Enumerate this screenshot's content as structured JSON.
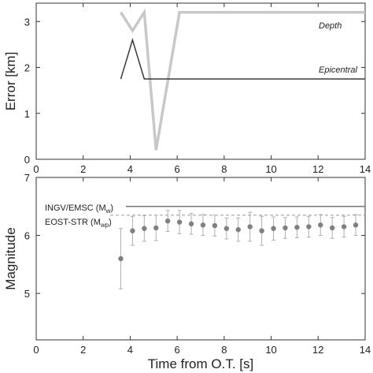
{
  "chart_data": [
    {
      "type": "line",
      "xlabel": "",
      "ylabel": "Error [km]",
      "xlim": [
        0,
        14
      ],
      "ylim": [
        0,
        3.4
      ],
      "xticks": [
        "0",
        "2",
        "4",
        "6",
        "8",
        "10",
        "12",
        "14"
      ],
      "yticks": [
        "0",
        "1",
        "2",
        "3"
      ],
      "grid": false,
      "series": [
        {
          "name": "Depth",
          "color": "#c8c8c8",
          "x": [
            3.6,
            4.1,
            4.6,
            5.1,
            6.1,
            14.0
          ],
          "y": [
            3.2,
            2.8,
            3.2,
            0.2,
            3.2,
            3.2
          ]
        },
        {
          "name": "Epicentral",
          "color": "#3a3a3a",
          "x": [
            3.6,
            4.1,
            4.6,
            14.0
          ],
          "y": [
            1.75,
            2.6,
            1.75,
            1.75
          ]
        }
      ]
    },
    {
      "type": "scatter",
      "xlabel": "Time from O.T. [s]",
      "ylabel": "Magnitude",
      "xlim": [
        0,
        14
      ],
      "ylim": [
        4.2,
        7.0
      ],
      "xticks": [
        "0",
        "2",
        "4",
        "6",
        "8",
        "10",
        "12",
        "14"
      ],
      "yticks": [
        "5",
        "6",
        "7"
      ],
      "grid": false,
      "reference_lines": [
        {
          "label": "INGV/EMSC",
          "sub": "w",
          "value": 6.5,
          "style": "solid",
          "color": "#777777"
        },
        {
          "label": "EOST-STR",
          "sub": "wp",
          "value": 6.35,
          "style": "dashed",
          "color": "#999999"
        }
      ],
      "series": [
        {
          "color": "#808080",
          "x": [
            3.6,
            4.1,
            4.6,
            5.1,
            5.6,
            6.1,
            6.6,
            7.1,
            7.6,
            8.1,
            8.6,
            9.1,
            9.6,
            10.1,
            10.6,
            11.1,
            11.6,
            12.1,
            12.6,
            13.1,
            13.6
          ],
          "y": [
            5.6,
            6.08,
            6.12,
            6.13,
            6.25,
            6.23,
            6.2,
            6.18,
            6.17,
            6.12,
            6.1,
            6.15,
            6.08,
            6.12,
            6.13,
            6.14,
            6.15,
            6.18,
            6.13,
            6.15,
            6.18
          ],
          "err": [
            0.52,
            0.25,
            0.22,
            0.22,
            0.18,
            0.2,
            0.18,
            0.18,
            0.18,
            0.18,
            0.2,
            0.25,
            0.25,
            0.2,
            0.18,
            0.18,
            0.18,
            0.18,
            0.18,
            0.18,
            0.18
          ]
        }
      ]
    }
  ],
  "annotations": {
    "depth": "Depth",
    "epicentral": "Epicentral",
    "ingv_main": "INGV/EMSC (M",
    "ingv_sub": "w",
    "ingv_end": ")",
    "eost_main": "EOST-STR (M",
    "eost_sub": "wp",
    "eost_end": ")"
  }
}
